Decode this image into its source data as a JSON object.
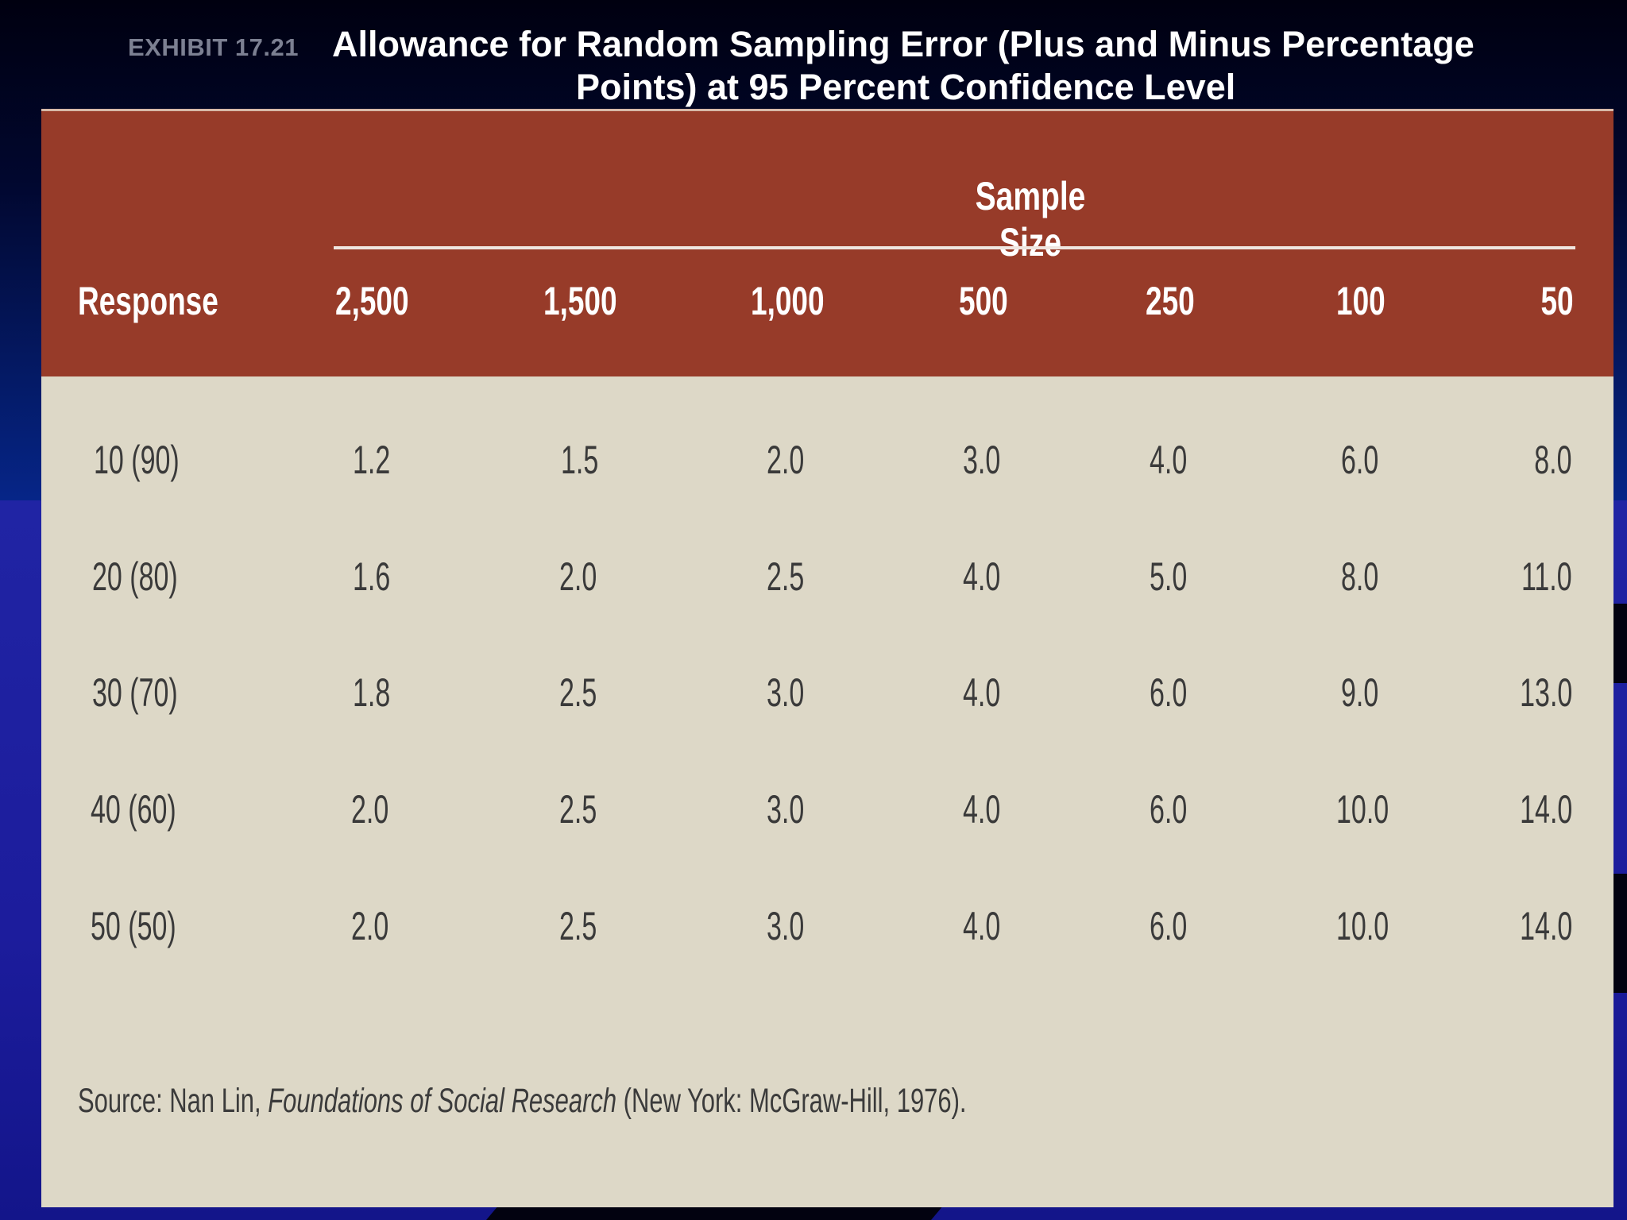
{
  "slide": {
    "exhibit_label": "EXHIBIT 17.21",
    "title_line_1": "Allowance for Random Sampling Error (Plus and Minus Percentage",
    "title_line_2": "Points) at 95 Percent Confidence Level"
  },
  "table": {
    "group_header": "Sample Size",
    "row_header_label": "Response",
    "columns": [
      "2,500",
      "1,500",
      "1,000",
      "500",
      "250",
      "100",
      "50"
    ],
    "rows": [
      {
        "response": "10 (90)",
        "values": [
          "1.2",
          "1.5",
          "2.0",
          "3.0",
          "4.0",
          "6.0",
          "8.0"
        ]
      },
      {
        "response": "20 (80)",
        "values": [
          "1.6",
          "2.0",
          "2.5",
          "4.0",
          "5.0",
          "8.0",
          "11.0"
        ]
      },
      {
        "response": "30 (70)",
        "values": [
          "1.8",
          "2.5",
          "3.0",
          "4.0",
          "6.0",
          "9.0",
          "13.0"
        ]
      },
      {
        "response": "40 (60)",
        "values": [
          "2.0",
          "2.5",
          "3.0",
          "4.0",
          "6.0",
          "10.0",
          "14.0"
        ]
      },
      {
        "response": "50 (50)",
        "values": [
          "2.0",
          "2.5",
          "3.0",
          "4.0",
          "6.0",
          "10.0",
          "14.0"
        ]
      }
    ]
  },
  "source": {
    "prefix": "Source: Nan Lin, ",
    "book_title": "Foundations of Social Research",
    "suffix": " (New York: McGraw-Hill, 1976)."
  }
}
